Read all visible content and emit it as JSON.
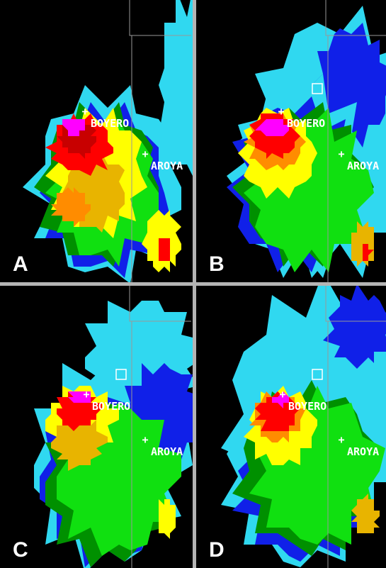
{
  "panels": [
    {
      "label": "A",
      "towns": [
        "BOYERO",
        "AROYA"
      ]
    },
    {
      "label": "B",
      "towns": [
        "BOYERO",
        "AROYA"
      ]
    },
    {
      "label": "C",
      "towns": [
        "BOYERO",
        "AROYA"
      ]
    },
    {
      "label": "D",
      "towns": [
        "BOYERO",
        "AROYA"
      ]
    }
  ]
}
